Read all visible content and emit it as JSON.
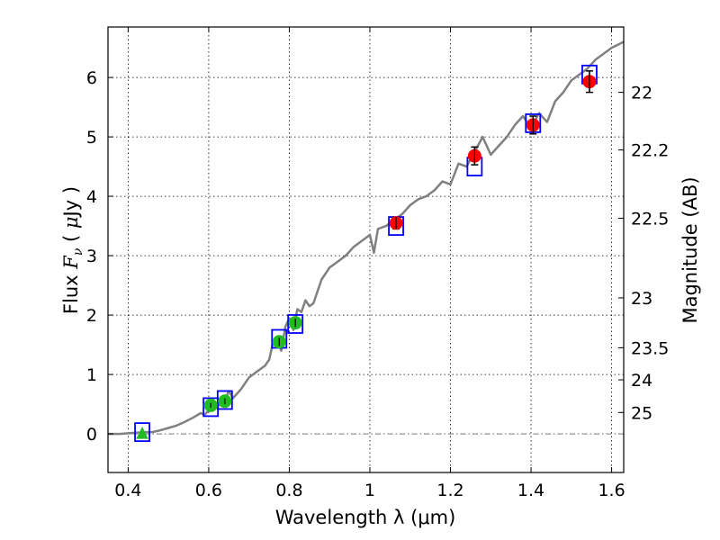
{
  "chart_data": {
    "type": "scatter",
    "title": "",
    "xlabel": "Wavelength  λ (μm)",
    "ylabel": "Flux  F_ν  ( μJy )",
    "ylabel_right": "Magnitude (AB)",
    "xlim": [
      0.35,
      1.63
    ],
    "ylim": [
      -0.65,
      6.85
    ],
    "grid": true,
    "x_ticks": [
      0.4,
      0.6,
      0.8,
      1.0,
      1.2,
      1.4,
      1.6
    ],
    "x_tick_labels": [
      "0.4",
      "0.6",
      "0.8",
      "1",
      "1.2",
      "1.4",
      "1.6"
    ],
    "y_ticks": [
      0,
      1,
      2,
      3,
      4,
      5,
      6
    ],
    "y_tick_labels": [
      "0",
      "1",
      "2",
      "3",
      "4",
      "5",
      "6"
    ],
    "right_axis": {
      "label": "Magnitude (AB)",
      "ticks": [
        {
          "label": "22",
          "flux": 5.75
        },
        {
          "label": "22.2",
          "flux": 4.78
        },
        {
          "label": "22.5",
          "flux": 3.63
        },
        {
          "label": "23",
          "flux": 2.29
        },
        {
          "label": "23.5",
          "flux": 1.45
        },
        {
          "label": "24",
          "flux": 0.91
        },
        {
          "label": "25",
          "flux": 0.36
        }
      ]
    },
    "zero_line": 0,
    "spectrum": {
      "color": "#808080",
      "x": [
        0.35,
        0.38,
        0.4,
        0.42,
        0.44,
        0.46,
        0.48,
        0.5,
        0.52,
        0.54,
        0.56,
        0.58,
        0.59,
        0.6,
        0.62,
        0.64,
        0.65,
        0.66,
        0.68,
        0.7,
        0.72,
        0.74,
        0.75,
        0.76,
        0.77,
        0.78,
        0.79,
        0.8,
        0.81,
        0.82,
        0.83,
        0.84,
        0.85,
        0.86,
        0.88,
        0.9,
        0.92,
        0.94,
        0.96,
        0.98,
        1.0,
        1.01,
        1.02,
        1.04,
        1.06,
        1.08,
        1.1,
        1.12,
        1.14,
        1.16,
        1.18,
        1.2,
        1.22,
        1.24,
        1.26,
        1.28,
        1.3,
        1.32,
        1.34,
        1.36,
        1.38,
        1.4,
        1.42,
        1.44,
        1.46,
        1.48,
        1.5,
        1.52,
        1.54,
        1.56,
        1.58,
        1.6,
        1.63
      ],
      "y": [
        0.0,
        0.0,
        0.01,
        0.02,
        0.03,
        0.03,
        0.06,
        0.1,
        0.14,
        0.2,
        0.27,
        0.35,
        0.32,
        0.4,
        0.45,
        0.58,
        0.72,
        0.6,
        0.75,
        0.95,
        1.05,
        1.15,
        1.25,
        1.55,
        1.6,
        1.4,
        1.8,
        1.95,
        1.75,
        2.1,
        2.05,
        2.25,
        2.15,
        2.2,
        2.6,
        2.8,
        2.9,
        3.0,
        3.15,
        3.25,
        3.35,
        3.05,
        3.45,
        3.5,
        3.6,
        3.7,
        3.85,
        3.95,
        4.0,
        4.1,
        4.25,
        4.2,
        4.55,
        4.5,
        4.75,
        5.0,
        4.7,
        4.85,
        5.0,
        5.2,
        5.35,
        5.15,
        5.4,
        5.25,
        5.6,
        5.75,
        5.95,
        6.05,
        6.15,
        6.3,
        6.4,
        6.5,
        6.6
      ]
    },
    "model_boxes": {
      "color": "#0000ff",
      "points": [
        {
          "x": 0.435,
          "y": 0.03
        },
        {
          "x": 0.605,
          "y": 0.45
        },
        {
          "x": 0.64,
          "y": 0.57
        },
        {
          "x": 0.775,
          "y": 1.6
        },
        {
          "x": 0.815,
          "y": 1.85
        },
        {
          "x": 1.065,
          "y": 3.5
        },
        {
          "x": 1.26,
          "y": 4.5
        },
        {
          "x": 1.405,
          "y": 5.23
        },
        {
          "x": 1.545,
          "y": 6.05
        }
      ]
    },
    "series": [
      {
        "color": "#22bb22",
        "marker": "circle",
        "points": [
          {
            "x": 0.605,
            "y": 0.48,
            "err": 0.04
          },
          {
            "x": 0.64,
            "y": 0.55,
            "err": 0.05
          },
          {
            "x": 0.775,
            "y": 1.55,
            "err": 0.07
          },
          {
            "x": 0.815,
            "y": 1.87,
            "err": 0.07
          }
        ]
      },
      {
        "color": "#22bb22",
        "marker": "triangle",
        "points": [
          {
            "x": 0.435,
            "y": 0.0,
            "err": 0
          }
        ]
      },
      {
        "color": "#ff0000",
        "marker": "circle",
        "points": [
          {
            "x": 1.065,
            "y": 3.55,
            "err": 0.1
          },
          {
            "x": 1.26,
            "y": 4.68,
            "err": 0.15
          },
          {
            "x": 1.405,
            "y": 5.2,
            "err": 0.15
          },
          {
            "x": 1.545,
            "y": 5.93,
            "err": 0.18
          }
        ]
      }
    ]
  }
}
